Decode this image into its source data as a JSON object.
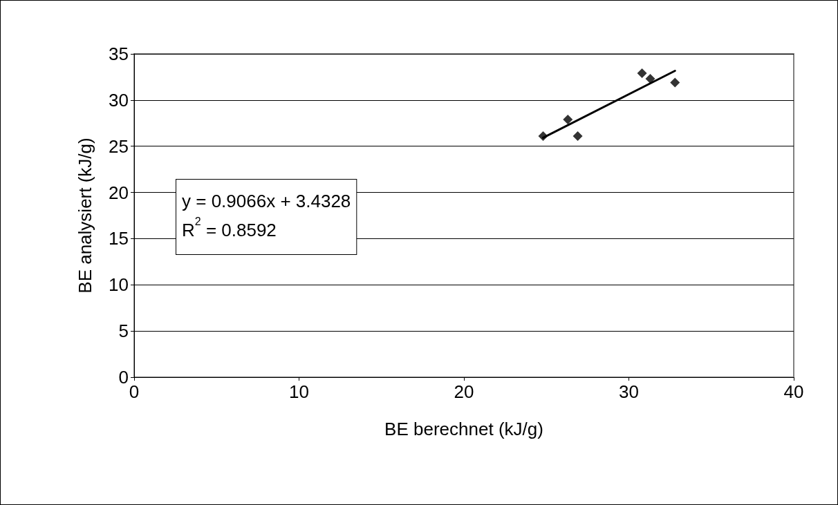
{
  "chart_data": {
    "type": "scatter",
    "xlabel": "BE berechnet (kJ/g)",
    "ylabel": "BE analysiert (kJ/g)",
    "series": [
      {
        "color": "#000000",
        "x": [
          24.8,
          26.3,
          26.9,
          30.8,
          31.3,
          32.8
        ],
        "values": [
          26.1,
          27.9,
          26.1,
          32.9,
          32.3,
          31.9
        ],
        "marker": "diamond"
      },
      {
        "type": "line",
        "color": "#000000",
        "x": [
          24.8,
          32.8
        ],
        "values": [
          25.92,
          33.17
        ],
        "marker": "none",
        "line_style": "solid"
      }
    ],
    "annotations": [
      "y = 0.9066x + 3.4328",
      "R$^{2}$ = 0.8592"
    ],
    "xlim": [
      0,
      40
    ],
    "xticks": [
      0,
      10,
      20,
      30,
      40
    ],
    "ylim": [
      0,
      35
    ],
    "yticks": [
      0,
      5,
      10,
      15,
      20,
      25,
      30,
      35
    ],
    "grid": "y"
  }
}
